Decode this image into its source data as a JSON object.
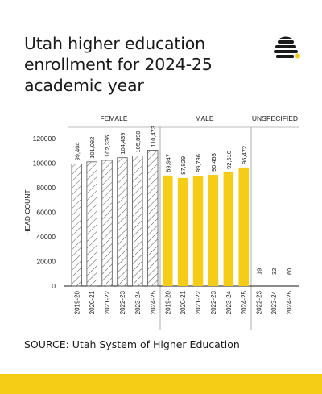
{
  "header": {
    "title": "Utah higher education enrollment for 2024-25 academic year",
    "logo_icon": "beehive-icon"
  },
  "footer": {
    "source": "SOURCE: Utah System of Higher Education"
  },
  "colors": {
    "accent": "#f5cc16",
    "hatch": "#555555",
    "text": "#1a1a1a",
    "rule": "#bdbdbd"
  },
  "chart_data": {
    "type": "bar",
    "ylabel": "HEAD COUNT",
    "ylim": [
      0,
      120000
    ],
    "yticks": [
      0,
      20000,
      40000,
      60000,
      80000,
      100000,
      120000
    ],
    "ytick_labels": [
      "0",
      "20000",
      "40000",
      "60000",
      "80000",
      "100000",
      "120000"
    ],
    "grid": false,
    "legend": "none",
    "groups": [
      {
        "name": "FEMALE",
        "style": "hatched",
        "categories": [
          "2019-20",
          "2020-21",
          "2021-22",
          "2022-23",
          "2023-24",
          "2024-25"
        ],
        "values": [
          99404,
          101092,
          102336,
          104439,
          105890,
          110473
        ],
        "labels": [
          "99,404",
          "101,092",
          "102,336",
          "104,439",
          "105,890",
          "110,473"
        ]
      },
      {
        "name": "MALE",
        "style": "solid",
        "color": "#f5cc16",
        "categories": [
          "2019-20",
          "2020-21",
          "2021-22",
          "2022-23",
          "2023-24",
          "2024-25"
        ],
        "values": [
          89947,
          87929,
          89796,
          90453,
          92510,
          96472
        ],
        "labels": [
          "89,947",
          "87,929",
          "89,796",
          "90,453",
          "92,510",
          "96,472"
        ]
      },
      {
        "name": "UNSPECIFIED",
        "style": "solid",
        "color": "#f5cc16",
        "categories": [
          "2022-23",
          "2023-24",
          "2024-25"
        ],
        "values": [
          19,
          32,
          60
        ],
        "labels": [
          "19",
          "32",
          "60"
        ]
      }
    ]
  }
}
